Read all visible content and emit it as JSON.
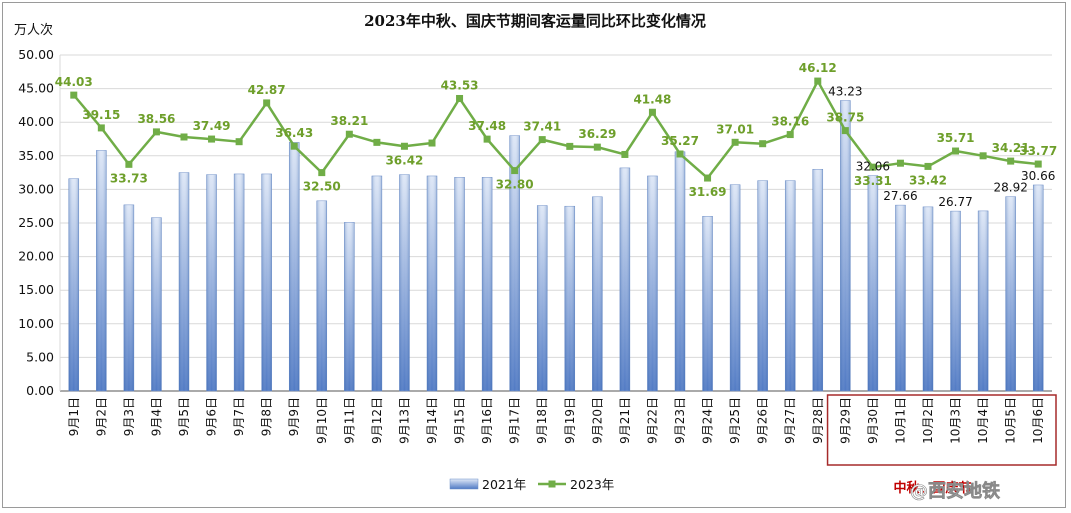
{
  "chart_data": {
    "type": "bar",
    "title": "2023年中秋、国庆节期间客运量同比环比变化情况",
    "ylabel": "万人次",
    "ylim": [
      0,
      50
    ],
    "yticks": [
      "0.00",
      "5.00",
      "10.00",
      "15.00",
      "20.00",
      "25.00",
      "30.00",
      "35.00",
      "40.00",
      "45.00",
      "50.00"
    ],
    "grid": true,
    "legend_position": "bottom",
    "categories": [
      "9月1日",
      "9月2日",
      "9月3日",
      "9月4日",
      "9月5日",
      "9月6日",
      "9月7日",
      "9月8日",
      "9月9日",
      "9月10日",
      "9月11日",
      "9月12日",
      "9月13日",
      "9月14日",
      "9月15日",
      "9月16日",
      "9月17日",
      "9月18日",
      "9月19日",
      "9月20日",
      "9月21日",
      "9月22日",
      "9月23日",
      "9月24日",
      "9月25日",
      "9月26日",
      "9月27日",
      "9月28日",
      "9月29日",
      "9月30日",
      "10月1日",
      "10月2日",
      "10月3日",
      "10月4日",
      "10月5日",
      "10月6日"
    ],
    "series": [
      {
        "name": "2021年",
        "type": "bar",
        "color": "#4f79c4",
        "values": [
          31.6,
          35.8,
          27.7,
          25.8,
          32.5,
          32.2,
          32.3,
          32.3,
          37.0,
          28.3,
          25.1,
          32.0,
          32.2,
          32.0,
          31.8,
          31.8,
          38.0,
          27.6,
          27.5,
          28.9,
          33.2,
          32.0,
          35.6,
          26.0,
          30.7,
          31.3,
          31.3,
          33.0,
          43.23,
          32.06,
          27.66,
          27.4,
          26.77,
          26.8,
          28.92,
          30.66
        ],
        "data_labels": [
          "",
          "",
          "",
          "",
          "",
          "",
          "",
          "",
          "",
          "",
          "",
          "",
          "",
          "",
          "",
          "",
          "",
          "",
          "",
          "",
          "",
          "",
          "",
          "",
          "",
          "",
          "",
          "",
          "43.23",
          "32.06",
          "27.66",
          "",
          "26.77",
          "",
          "28.92",
          "30.66"
        ]
      },
      {
        "name": "2023年",
        "type": "line",
        "color": "#70ad47",
        "values": [
          44.03,
          39.15,
          33.73,
          38.56,
          37.8,
          37.49,
          37.1,
          42.87,
          36.43,
          32.5,
          38.21,
          37.0,
          36.42,
          36.9,
          43.53,
          37.48,
          32.8,
          37.41,
          36.4,
          36.29,
          35.2,
          41.48,
          35.27,
          31.69,
          37.01,
          36.8,
          38.16,
          46.12,
          38.75,
          33.31,
          33.9,
          33.42,
          35.71,
          35.0,
          34.21,
          33.77
        ],
        "data_labels": [
          "44.03",
          "39.15",
          "33.73",
          "38.56",
          "",
          "37.49",
          "",
          "42.87",
          "36.43",
          "32.50",
          "38.21",
          "",
          "36.42",
          "",
          "43.53",
          "37.48",
          "32.80",
          "37.41",
          "",
          "36.29",
          "",
          "41.48",
          "35.27",
          "31.69",
          "37.01",
          "",
          "38.16",
          "46.12",
          "38.75",
          "33.31",
          "",
          "33.42",
          "35.71",
          "",
          "34.21",
          "33.77"
        ]
      }
    ],
    "highlight": {
      "from_category": "9月29日",
      "to_category": "10月6日",
      "color": "#a52a2a",
      "label": "中秋、国庆节"
    },
    "watermark": "@西安地铁"
  }
}
